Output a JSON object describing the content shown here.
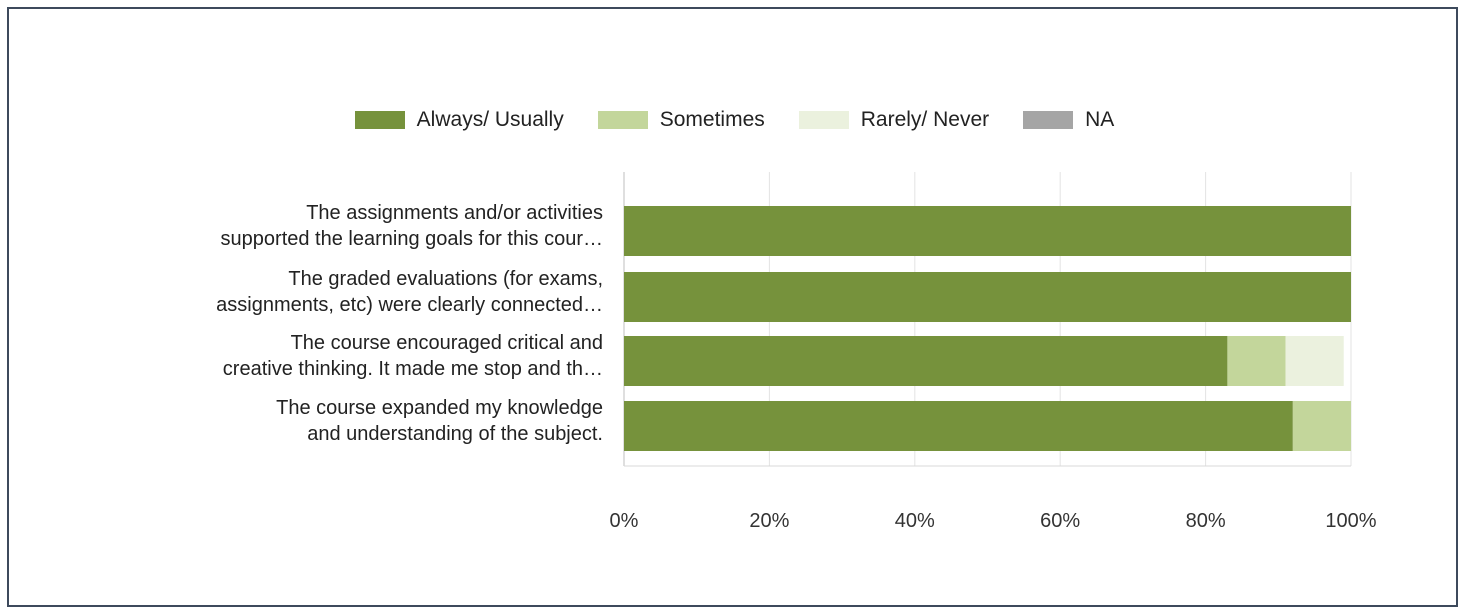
{
  "chart_data": {
    "type": "bar",
    "orientation": "horizontal",
    "stacked": true,
    "percent": true,
    "legend_position": "top",
    "grid": true,
    "categories": [
      [
        "The assignments and/or activities",
        "supported the learning goals for this cour…"
      ],
      [
        "The graded evaluations (for exams,",
        "assignments, etc) were clearly connected…"
      ],
      [
        "The course encouraged critical and",
        "creative thinking. It made me stop and th…"
      ],
      [
        "The course expanded my knowledge",
        "and understanding of the subject."
      ]
    ],
    "series": [
      {
        "name": "Always/ Usually",
        "color": "#76923c",
        "values": [
          100,
          100,
          83,
          92
        ]
      },
      {
        "name": "Sometimes",
        "color": "#c3d69b",
        "values": [
          0,
          0,
          8,
          8
        ]
      },
      {
        "name": "Rarely/ Never",
        "color": "#ebf1de",
        "values": [
          0,
          0,
          8,
          0
        ]
      },
      {
        "name": "NA",
        "color": "#a5a5a5",
        "values": [
          0,
          0,
          0,
          0
        ]
      }
    ],
    "xlim": [
      0,
      100
    ],
    "x_ticks": [
      "0%",
      "20%",
      "40%",
      "60%",
      "80%",
      "100%"
    ]
  }
}
